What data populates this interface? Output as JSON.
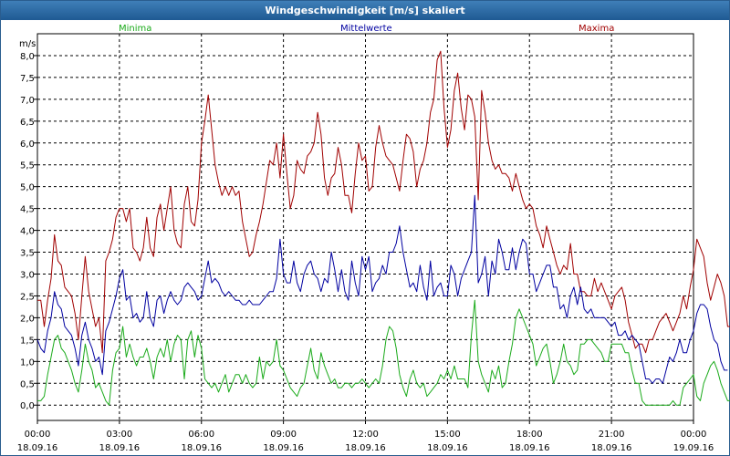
{
  "window": {
    "title": "Windgeschwindigkeit [m/s] skaliert"
  },
  "chart_data": {
    "type": "line",
    "title": "Windgeschwindigkeit [m/s] skaliert",
    "ylabel": "m/s",
    "ylim": [
      -0.35,
      8.5
    ],
    "xlim": [
      0,
      48
    ],
    "y_ticks": [
      "0,0",
      "0,5",
      "1,0",
      "1,5",
      "2,0",
      "2,5",
      "3,0",
      "3,5",
      "4,0",
      "4,5",
      "5,0",
      "5,5",
      "6,0",
      "6,5",
      "7,0",
      "7,5",
      "8,0"
    ],
    "y_tick_values": [
      0,
      0.5,
      1,
      1.5,
      2,
      2.5,
      3,
      3.5,
      4,
      4.5,
      5,
      5.5,
      6,
      6.5,
      7,
      7.5,
      8
    ],
    "x_ticks": [
      {
        "time": "00:00",
        "date": "18.09.16"
      },
      {
        "time": "03:00",
        "date": "18.09.16"
      },
      {
        "time": "06:00",
        "date": "18.09.16"
      },
      {
        "time": "09:00",
        "date": "18.09.16"
      },
      {
        "time": "12:00",
        "date": "18.09.16"
      },
      {
        "time": "15:00",
        "date": "18.09.16"
      },
      {
        "time": "18:00",
        "date": "18.09.16"
      },
      {
        "time": "21:00",
        "date": "18.09.16"
      },
      {
        "time": "00:00",
        "date": "19.09.16"
      }
    ],
    "x_tick_values": [
      0,
      6,
      12,
      18,
      24,
      30,
      36,
      42,
      48
    ],
    "grid": true,
    "legend": [
      "Minima",
      "Mittelwerte",
      "Maxima"
    ],
    "colors": {
      "Minima": "#1aaa1a",
      "Mittelwerte": "#0000a0",
      "Maxima": "#a00000",
      "grid": "#000000"
    },
    "series": [
      {
        "name": "Maxima",
        "x_step": 0.25,
        "values": [
          2.4,
          2.4,
          1.8,
          2.4,
          2.9,
          3.9,
          3.3,
          3.2,
          2.7,
          2.6,
          2.5,
          2.1,
          1.5,
          2.5,
          3.4,
          2.6,
          2.2,
          1.8,
          2.0,
          1.2,
          3.3,
          3.5,
          3.8,
          4.3,
          4.5,
          4.5,
          4.2,
          4.5,
          3.6,
          3.5,
          3.3,
          3.6,
          4.3,
          3.6,
          3.4,
          4.3,
          4.6,
          4.0,
          4.5,
          5.0,
          4.0,
          3.7,
          3.6,
          4.6,
          5.0,
          4.2,
          4.1,
          4.7,
          6.0,
          6.5,
          7.1,
          6.3,
          5.5,
          5.1,
          4.8,
          5.0,
          4.8,
          5.0,
          4.8,
          4.9,
          4.2,
          3.8,
          3.4,
          3.5,
          3.9,
          4.2,
          4.6,
          5.1,
          5.6,
          5.5,
          6.0,
          5.2,
          6.2,
          5.3,
          4.5,
          4.8,
          5.6,
          5.4,
          5.3,
          5.7,
          5.8,
          6.0,
          6.7,
          6.2,
          5.2,
          4.8,
          5.2,
          5.3,
          5.9,
          5.5,
          4.8,
          4.8,
          4.4,
          5.3,
          6.0,
          5.6,
          5.7,
          4.9,
          5.0,
          5.9,
          6.4,
          6.0,
          5.7,
          5.6,
          5.5,
          5.2,
          4.9,
          5.6,
          6.2,
          6.1,
          5.8,
          5.0,
          5.4,
          5.6,
          6.0,
          6.7,
          7.0,
          7.9,
          8.1,
          6.8,
          5.9,
          6.3,
          7.2,
          7.6,
          6.8,
          6.3,
          7.1,
          7.0,
          6.6,
          4.7,
          7.2,
          6.7,
          6.0,
          5.6,
          5.4,
          5.5,
          5.3,
          5.3,
          5.2,
          4.9,
          5.3,
          5.0,
          4.7,
          4.5,
          4.6,
          4.5,
          4.1,
          3.9,
          3.6,
          4.1,
          3.8,
          3.5,
          3.2,
          3.0,
          3.2,
          3.1,
          3.7,
          3.0,
          3.0,
          2.6,
          2.6,
          2.5,
          2.5,
          2.9,
          2.6,
          2.8,
          2.6,
          2.4,
          2.2,
          2.5,
          2.6,
          2.7,
          2.4,
          1.9,
          1.6,
          1.3,
          1.4,
          1.4,
          1.2,
          1.5,
          1.5,
          1.7,
          1.9,
          2.0,
          2.1,
          1.9,
          1.7,
          1.9,
          2.1,
          2.5,
          2.2,
          2.7,
          3.1,
          3.8,
          3.6,
          3.4,
          2.8,
          2.4,
          2.7,
          3.0,
          2.8,
          2.5,
          1.8,
          1.8
        ]
      },
      {
        "name": "Mittelwerte",
        "x_step": 0.25,
        "values": [
          1.5,
          1.3,
          1.2,
          1.7,
          2.0,
          2.6,
          2.3,
          2.2,
          1.8,
          1.7,
          1.6,
          1.3,
          0.9,
          1.6,
          1.9,
          1.5,
          1.3,
          1.0,
          1.1,
          0.7,
          1.7,
          1.9,
          2.2,
          2.5,
          2.9,
          3.1,
          2.4,
          2.5,
          2.0,
          2.1,
          1.9,
          2.0,
          2.6,
          2.0,
          1.8,
          2.4,
          2.5,
          2.1,
          2.4,
          2.6,
          2.4,
          2.3,
          2.4,
          2.7,
          2.8,
          2.7,
          2.6,
          2.4,
          2.5,
          2.9,
          3.3,
          2.8,
          2.9,
          2.8,
          2.6,
          2.5,
          2.6,
          2.5,
          2.4,
          2.4,
          2.3,
          2.3,
          2.4,
          2.3,
          2.3,
          2.3,
          2.4,
          2.5,
          2.6,
          2.6,
          2.9,
          3.8,
          3.0,
          2.8,
          2.8,
          3.3,
          2.8,
          2.6,
          3.0,
          3.2,
          3.3,
          3.0,
          2.9,
          2.6,
          2.9,
          2.8,
          3.5,
          3.1,
          2.6,
          3.1,
          2.6,
          2.4,
          3.3,
          2.8,
          2.5,
          3.4,
          3.1,
          3.4,
          2.6,
          2.8,
          2.9,
          3.2,
          3.0,
          3.5,
          3.5,
          3.7,
          4.1,
          3.5,
          3.1,
          2.7,
          2.8,
          2.6,
          3.2,
          2.7,
          2.4,
          3.3,
          2.5,
          2.7,
          2.8,
          2.5,
          2.5,
          3.2,
          3.0,
          2.5,
          2.9,
          3.1,
          3.3,
          3.5,
          4.8,
          2.8,
          3.0,
          3.4,
          2.5,
          3.3,
          3.0,
          3.8,
          3.5,
          3.1,
          3.1,
          3.6,
          3.1,
          3.5,
          3.8,
          3.7,
          3.0,
          3.0,
          2.6,
          2.8,
          3.0,
          3.2,
          3.2,
          2.7,
          2.7,
          2.2,
          2.3,
          2.0,
          2.5,
          2.7,
          2.3,
          2.7,
          2.2,
          2.1,
          2.2,
          2.0,
          2.0,
          2.0,
          2.0,
          1.9,
          1.8,
          1.9,
          1.6,
          1.6,
          1.7,
          1.5,
          1.6,
          1.5,
          1.4,
          1.0,
          0.6,
          0.6,
          0.5,
          0.6,
          0.6,
          0.5,
          0.8,
          1.1,
          1.0,
          1.2,
          1.5,
          1.2,
          1.2,
          1.5,
          1.7,
          2.1,
          2.3,
          2.3,
          2.2,
          1.8,
          1.5,
          1.4,
          1.0,
          0.8,
          0.8
        ]
      },
      {
        "name": "Minima",
        "x_step": 0.25,
        "values": [
          0.1,
          0.1,
          0.2,
          0.7,
          1.1,
          1.5,
          1.6,
          1.3,
          1.2,
          1.0,
          0.8,
          0.5,
          0.3,
          0.8,
          1.4,
          1.0,
          0.8,
          0.4,
          0.5,
          0.3,
          0.1,
          0.0,
          0.8,
          1.2,
          1.3,
          1.8,
          1.1,
          1.4,
          1.1,
          0.9,
          1.1,
          1.1,
          1.3,
          1.0,
          0.6,
          1.1,
          1.3,
          1.1,
          1.5,
          1.0,
          1.4,
          1.6,
          1.5,
          0.6,
          1.5,
          1.7,
          1.1,
          1.6,
          1.3,
          0.6,
          0.5,
          0.4,
          0.5,
          0.3,
          0.5,
          0.7,
          0.3,
          0.5,
          0.7,
          0.7,
          0.5,
          0.7,
          0.5,
          0.4,
          0.5,
          1.1,
          0.6,
          1.0,
          0.9,
          1.0,
          1.5,
          0.9,
          0.8,
          0.6,
          0.4,
          0.3,
          0.2,
          0.4,
          0.5,
          0.9,
          1.3,
          0.8,
          0.6,
          1.2,
          0.9,
          0.7,
          0.5,
          0.6,
          0.4,
          0.4,
          0.5,
          0.5,
          0.4,
          0.5,
          0.5,
          0.6,
          0.5,
          0.4,
          0.5,
          0.6,
          0.5,
          0.9,
          1.5,
          1.8,
          1.7,
          1.3,
          0.7,
          0.4,
          0.2,
          0.6,
          0.8,
          0.5,
          0.4,
          0.5,
          0.2,
          0.3,
          0.4,
          0.5,
          0.7,
          0.6,
          0.8,
          0.6,
          0.9,
          0.6,
          0.6,
          0.6,
          0.4,
          1.6,
          2.4,
          1.0,
          0.7,
          0.5,
          0.3,
          0.8,
          0.6,
          0.9,
          0.4,
          0.5,
          1.0,
          1.4,
          2.0,
          2.2,
          2.0,
          1.8,
          1.6,
          1.4,
          0.9,
          1.1,
          1.3,
          1.4,
          1.0,
          0.5,
          0.7,
          1.0,
          1.4,
          1.0,
          0.9,
          0.7,
          0.8,
          1.4,
          1.4,
          1.5,
          1.5,
          1.4,
          1.3,
          1.2,
          1.0,
          1.0,
          1.4,
          1.4,
          1.4,
          1.4,
          1.2,
          1.2,
          0.8,
          0.5,
          0.5,
          0.1,
          0.0,
          0.0,
          0.0,
          0.0,
          0.0,
          0.0,
          0.0,
          0.0,
          0.1,
          0.0,
          0.0,
          0.4,
          0.5,
          0.6,
          0.7,
          0.2,
          0.1,
          0.5,
          0.7,
          0.9,
          1.0,
          0.8,
          0.5,
          0.3,
          0.1,
          0.1,
          0.1,
          0.1,
          0.1,
          0.0
        ]
      }
    ]
  }
}
